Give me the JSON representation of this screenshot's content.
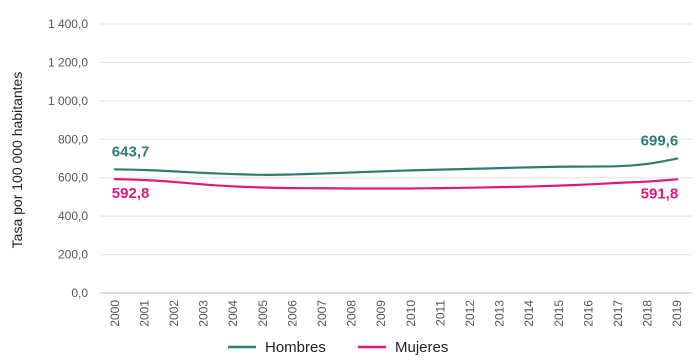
{
  "chart_data": {
    "type": "line",
    "title": "",
    "xlabel": "",
    "ylabel": "Tasa por 100 000 habitantes",
    "ylim": [
      0,
      1400
    ],
    "yticks": [
      "0,0",
      "200,0",
      "400,0",
      "600,0",
      "800,0",
      "1 000,0",
      "1 200,0",
      "1 400,0"
    ],
    "grid": "horizontal",
    "legend_position": "bottom",
    "categories": [
      "2000",
      "2001",
      "2002",
      "2003",
      "2004",
      "2005",
      "2006",
      "2007",
      "2008",
      "2009",
      "2010",
      "2011",
      "2012",
      "2013",
      "2014",
      "2015",
      "2016",
      "2017",
      "2018",
      "2019"
    ],
    "series": [
      {
        "name": "Hombres",
        "color": "#2e7d74",
        "values": [
          643.7,
          640,
          633,
          625,
          619,
          615,
          617,
          622,
          627,
          633,
          638,
          642,
          646,
          650,
          654,
          657,
          658,
          660,
          672,
          699.6
        ],
        "first_label": "643,7",
        "last_label": "699,6"
      },
      {
        "name": "Mujeres",
        "color": "#e0187a",
        "values": [
          592.8,
          588,
          578,
          565,
          555,
          549,
          546,
          545,
          544,
          544,
          544,
          546,
          548,
          551,
          554,
          559,
          565,
          573,
          580,
          591.8
        ],
        "first_label": "592,8",
        "last_label": "591,8"
      }
    ]
  }
}
